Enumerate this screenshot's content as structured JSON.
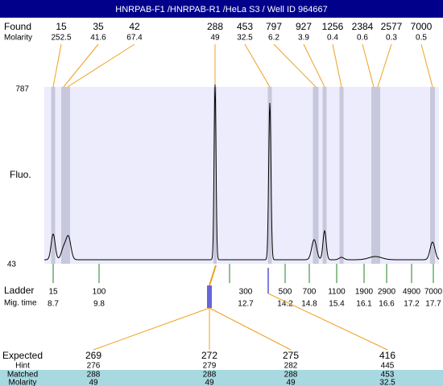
{
  "header": {
    "title": "HNRPAB-F1 /HNRPAB-R1 /HeLa S3 / Well ID 964667"
  },
  "found": {
    "label": "Found",
    "values": [
      15,
      35,
      42,
      288,
      453,
      797,
      927,
      1256,
      2384,
      2577,
      7000
    ]
  },
  "molarity": {
    "label": "Molarity",
    "values": [
      252.5,
      41.6,
      67.4,
      49,
      32.5,
      6.2,
      3.9,
      0.4,
      0.6,
      0.3,
      0.5
    ]
  },
  "y_axis": {
    "label": "Fluo.",
    "max": 787,
    "min": 43
  },
  "ladder": {
    "label": "Ladder",
    "sizes": [
      15,
      100,
      300,
      500,
      700,
      1100,
      1900,
      2900,
      4900,
      7000
    ]
  },
  "mig_time": {
    "label": "Mig. time",
    "values": [
      8.7,
      9.8,
      12.7,
      14.2,
      14.8,
      15.4,
      16.1,
      16.6,
      17.2,
      17.7
    ]
  },
  "expected": {
    "label": "Expected",
    "values": [
      269,
      272,
      275,
      416
    ]
  },
  "hint": {
    "label": "Hint",
    "values": [
      276,
      279,
      282,
      445
    ]
  },
  "matched": {
    "label": "Matched",
    "values": [
      288,
      288,
      288,
      453
    ]
  },
  "molarity_matched": {
    "label": "Molarity",
    "values": [
      49,
      49,
      49,
      32.5
    ]
  }
}
